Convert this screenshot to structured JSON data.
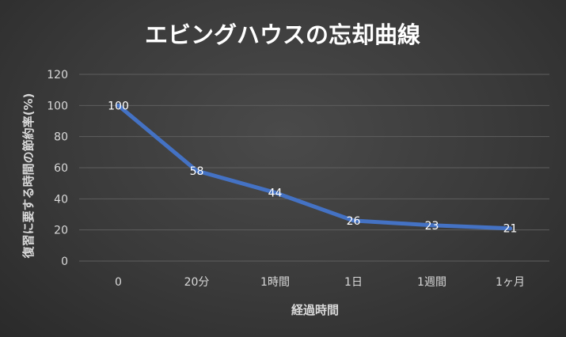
{
  "chart_data": {
    "type": "line",
    "title": "エビングハウスの忘却曲線",
    "xlabel": "経過時間",
    "ylabel": "復習に要する時間の節約率(%)",
    "categories": [
      "0",
      "20分",
      "1時間",
      "1日",
      "1週間",
      "1ヶ月"
    ],
    "series": [
      {
        "values": [
          100,
          58,
          44,
          26,
          23,
          21
        ],
        "color": "#4472c4"
      }
    ],
    "ylim": [
      0,
      120
    ],
    "yticks": [
      "0",
      "20",
      "40",
      "60",
      "80",
      "100",
      "120"
    ],
    "data_labels": [
      "100",
      "58",
      "44",
      "26",
      "23",
      "21"
    ],
    "grid": true,
    "legend": "none"
  }
}
